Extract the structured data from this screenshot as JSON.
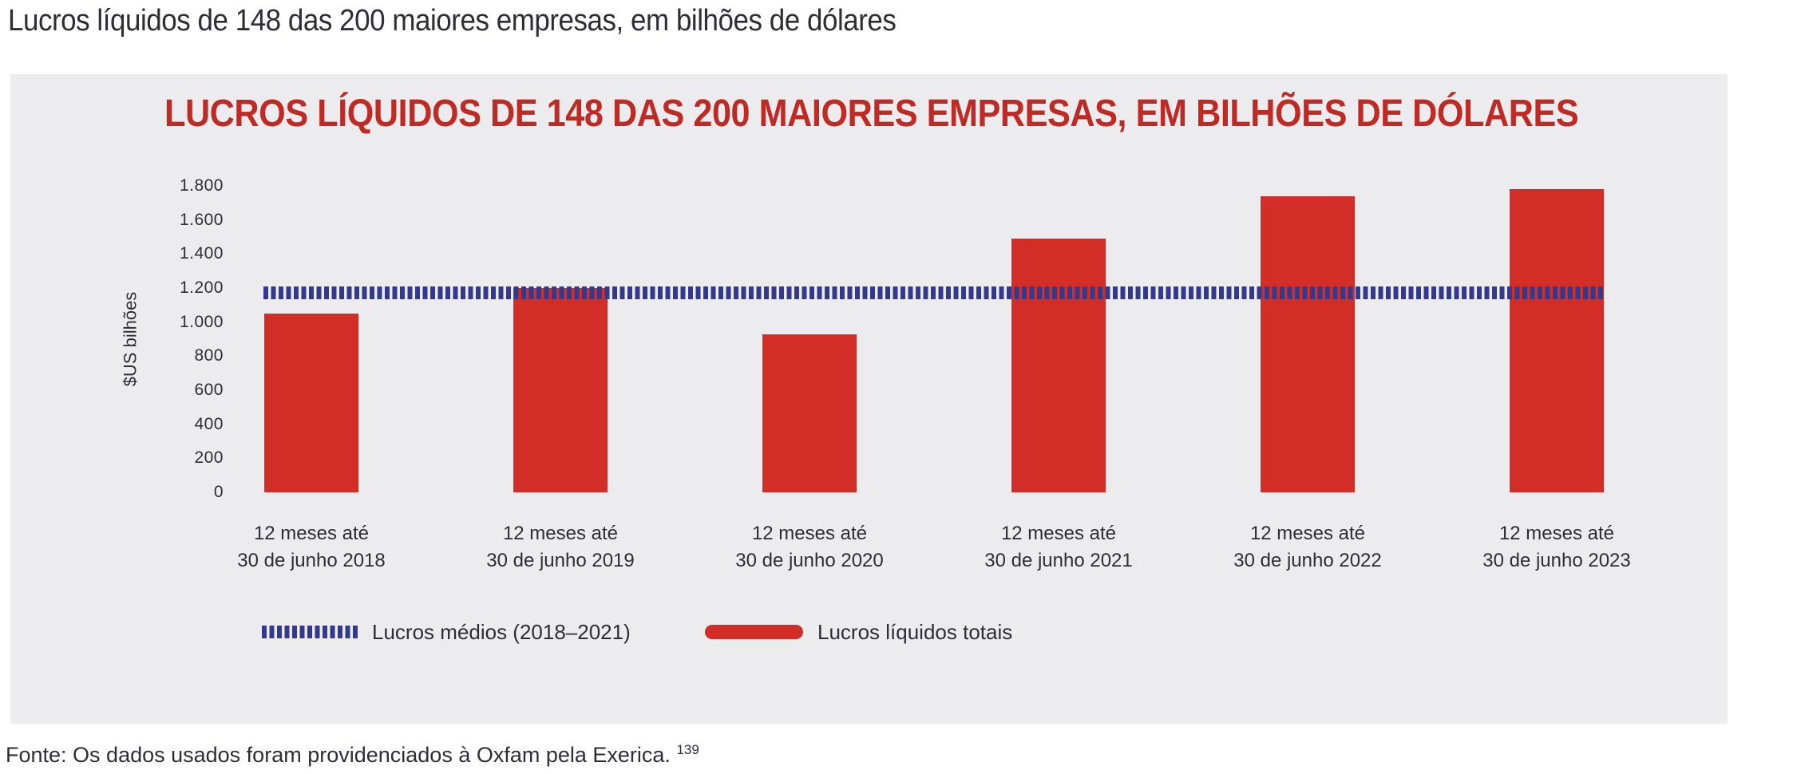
{
  "page": {
    "heading": "Lucros líquidos de 148 das 200 maiores empresas, em bilhões de dólares",
    "source": {
      "text": "Fonte: Os dados usados foram providenciados à Oxfam pela Exerica.",
      "footnote": "139"
    }
  },
  "chart_data": {
    "type": "bar",
    "title": "LUCROS LÍQUIDOS DE 148 DAS 200 MAIORES EMPRESAS, EM BILHÕES DE DÓLARES",
    "xlabel": "",
    "ylabel": "$US bilhões",
    "ylim": [
      0,
      1800
    ],
    "y_tick_step": 200,
    "y_tick_labels": [
      "0",
      "200",
      "400",
      "600",
      "800",
      "1.000",
      "1.200",
      "1.400",
      "1.600",
      "1.800"
    ],
    "categories": [
      [
        "12 meses até",
        "30 de junho 2018"
      ],
      [
        "12 meses até",
        "30 de junho 2019"
      ],
      [
        "12 meses até",
        "30 de junho 2020"
      ],
      [
        "12 meses até",
        "30 de junho 2021"
      ],
      [
        "12 meses até",
        "30 de junho 2022"
      ],
      [
        "12 meses até",
        "30 de junho 2023"
      ]
    ],
    "series": [
      {
        "name": "Lucros líquidos totais",
        "values": [
          1050,
          1200,
          930,
          1490,
          1740,
          1780
        ]
      }
    ],
    "average_line": {
      "name": "Lucros médios (2018–2021)",
      "value": 1170
    },
    "legend_position": "bottom",
    "grid": false,
    "colors": {
      "bar": "#d22d26",
      "average_line": "#333a8e",
      "title": "#c02a24",
      "panel_background": "#ececee",
      "text": "#2e2d37"
    }
  }
}
